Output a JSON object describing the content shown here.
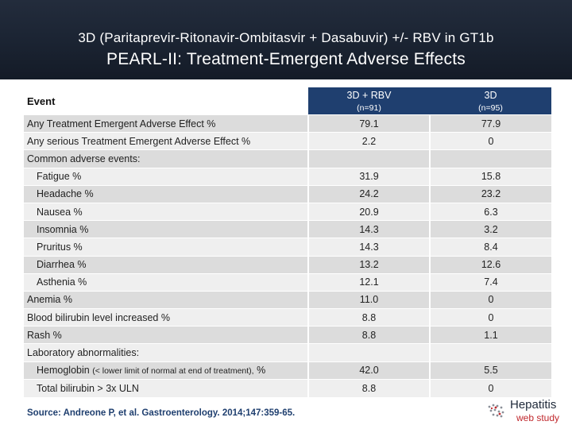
{
  "title": {
    "line1": "3D (Paritaprevir-Ritonavir-Ombitasvir + Dasabuvir) +/- RBV in GT1b",
    "line2": "PEARL-II: Treatment-Emergent Adverse Effects"
  },
  "table": {
    "event_header": "Event",
    "columns": [
      {
        "arm": "3D + RBV",
        "n": "(n=91)"
      },
      {
        "arm": "3D",
        "n": "(n=95)"
      }
    ],
    "rows": [
      {
        "label": "Any Treatment Emergent Adverse Effect %",
        "v1": "79.1",
        "v2": "77.9"
      },
      {
        "label": "Any serious Treatment Emergent Adverse Effect %",
        "v1": "2.2",
        "v2": "0"
      },
      {
        "label": "Common adverse events:",
        "v1": "",
        "v2": ""
      },
      {
        "label": "Fatigue %",
        "v1": "31.9",
        "v2": "15.8"
      },
      {
        "label": "Headache %",
        "v1": "24.2",
        "v2": "23.2"
      },
      {
        "label": "Nausea %",
        "v1": "20.9",
        "v2": "6.3"
      },
      {
        "label": "Insomnia %",
        "v1": "14.3",
        "v2": "3.2"
      },
      {
        "label": "Pruritus %",
        "v1": "14.3",
        "v2": "8.4"
      },
      {
        "label": "Diarrhea %",
        "v1": "13.2",
        "v2": "12.6"
      },
      {
        "label": "Asthenia %",
        "v1": "12.1",
        "v2": "7.4"
      },
      {
        "label": "Anemia %",
        "v1": "11.0",
        "v2": "0"
      },
      {
        "label": "Blood bilirubin level increased %",
        "v1": "8.8",
        "v2": "0"
      },
      {
        "label": "Rash %",
        "v1": "8.8",
        "v2": "1.1"
      },
      {
        "label": "Laboratory abnormalities:",
        "v1": "",
        "v2": ""
      },
      {
        "label": "Hemoglobin",
        "label_note": "(< lower limit of normal at end of treatment),",
        "label_suffix": "%",
        "v1": "42.0",
        "v2": "5.5"
      },
      {
        "label": "Total bilirubin > 3x ULN",
        "v1": "8.8",
        "v2": "0"
      }
    ]
  },
  "source": "Source: Andreone P, et al. Gastroenterology. 2014;147:359-65.",
  "logo": {
    "line1": "Hepatitis",
    "line2": "web study"
  },
  "colors": {
    "header_bg": "#1c2534",
    "column_header": "#1f3f6f",
    "row_dark": "#dcdcdc",
    "row_light": "#efefef",
    "logo_red": "#c0282d"
  }
}
